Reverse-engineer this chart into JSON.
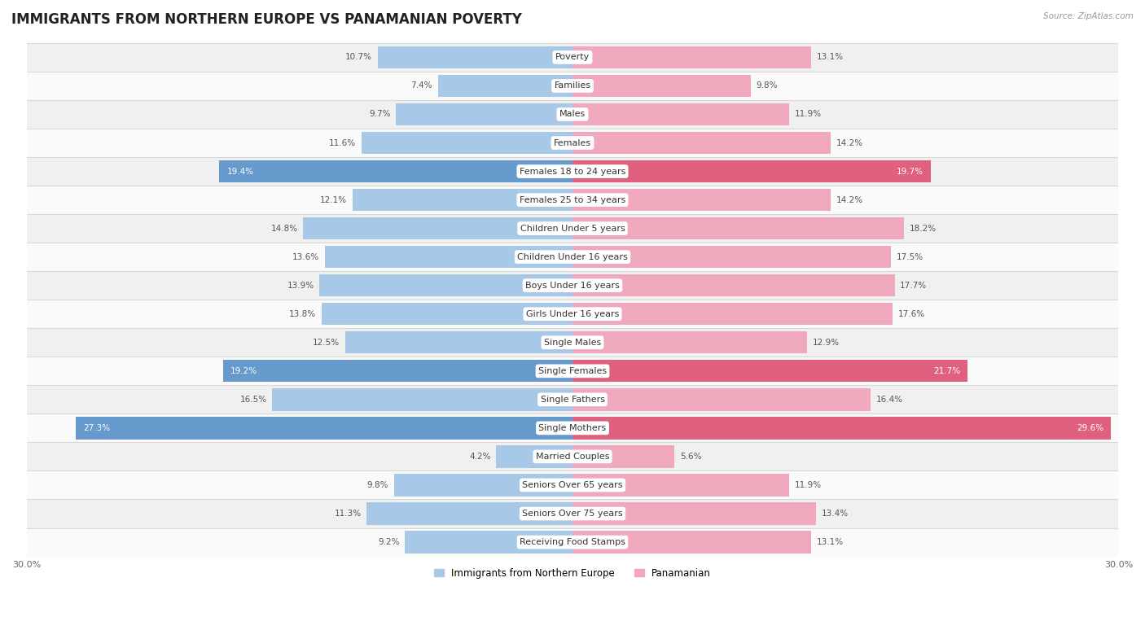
{
  "title": "IMMIGRANTS FROM NORTHERN EUROPE VS PANAMANIAN POVERTY",
  "source": "Source: ZipAtlas.com",
  "categories": [
    "Poverty",
    "Families",
    "Males",
    "Females",
    "Females 18 to 24 years",
    "Females 25 to 34 years",
    "Children Under 5 years",
    "Children Under 16 years",
    "Boys Under 16 years",
    "Girls Under 16 years",
    "Single Males",
    "Single Females",
    "Single Fathers",
    "Single Mothers",
    "Married Couples",
    "Seniors Over 65 years",
    "Seniors Over 75 years",
    "Receiving Food Stamps"
  ],
  "left_values": [
    10.7,
    7.4,
    9.7,
    11.6,
    19.4,
    12.1,
    14.8,
    13.6,
    13.9,
    13.8,
    12.5,
    19.2,
    16.5,
    27.3,
    4.2,
    9.8,
    11.3,
    9.2
  ],
  "right_values": [
    13.1,
    9.8,
    11.9,
    14.2,
    19.7,
    14.2,
    18.2,
    17.5,
    17.7,
    17.6,
    12.9,
    21.7,
    16.4,
    29.6,
    5.6,
    11.9,
    13.4,
    13.1
  ],
  "left_color_normal": "#a8c8e8",
  "right_color_normal": "#f0a8bc",
  "left_color_highlight": "#6699cc",
  "right_color_highlight": "#e06080",
  "highlight_rows": [
    4,
    11,
    13
  ],
  "left_label": "Immigrants from Northern Europe",
  "right_label": "Panamanian",
  "xlim": 30.0,
  "row_bg_odd": "#f0f0f0",
  "row_bg_even": "#fafafa",
  "separator_color": "#d8d8d8",
  "title_fontsize": 12,
  "label_fontsize": 8,
  "value_fontsize": 7.5,
  "axis_tick_fontsize": 8
}
